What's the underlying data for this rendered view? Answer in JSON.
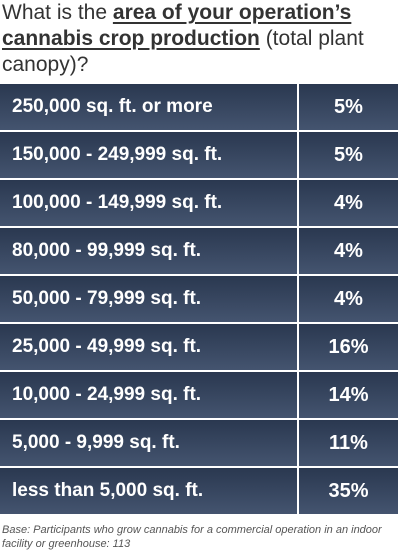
{
  "title": {
    "prefix": "What is the ",
    "emphasis": "area of your operation’s cannabis crop production",
    "suffix": " (total plant canopy)?"
  },
  "table": {
    "rows": [
      [
        "250,000 sq. ft. or more",
        "5%"
      ],
      [
        "150,000 - 249,999 sq. ft.",
        "5%"
      ],
      [
        "100,000 - 149,999 sq. ft.",
        "4%"
      ],
      [
        "80,000 - 99,999 sq. ft.",
        "4%"
      ],
      [
        "50,000 - 79,999 sq. ft.",
        "4%"
      ],
      [
        "25,000 - 49,999 sq. ft.",
        "16%"
      ],
      [
        "10,000 - 24,999 sq. ft.",
        "14%"
      ],
      [
        "5,000 - 9,999 sq. ft.",
        "11%"
      ],
      [
        "less than 5,000 sq. ft.",
        "35%"
      ]
    ]
  },
  "footnote": "Base: Participants who grow cannabis for a commercial operation in an indoor facility or greenhouse: 113"
}
